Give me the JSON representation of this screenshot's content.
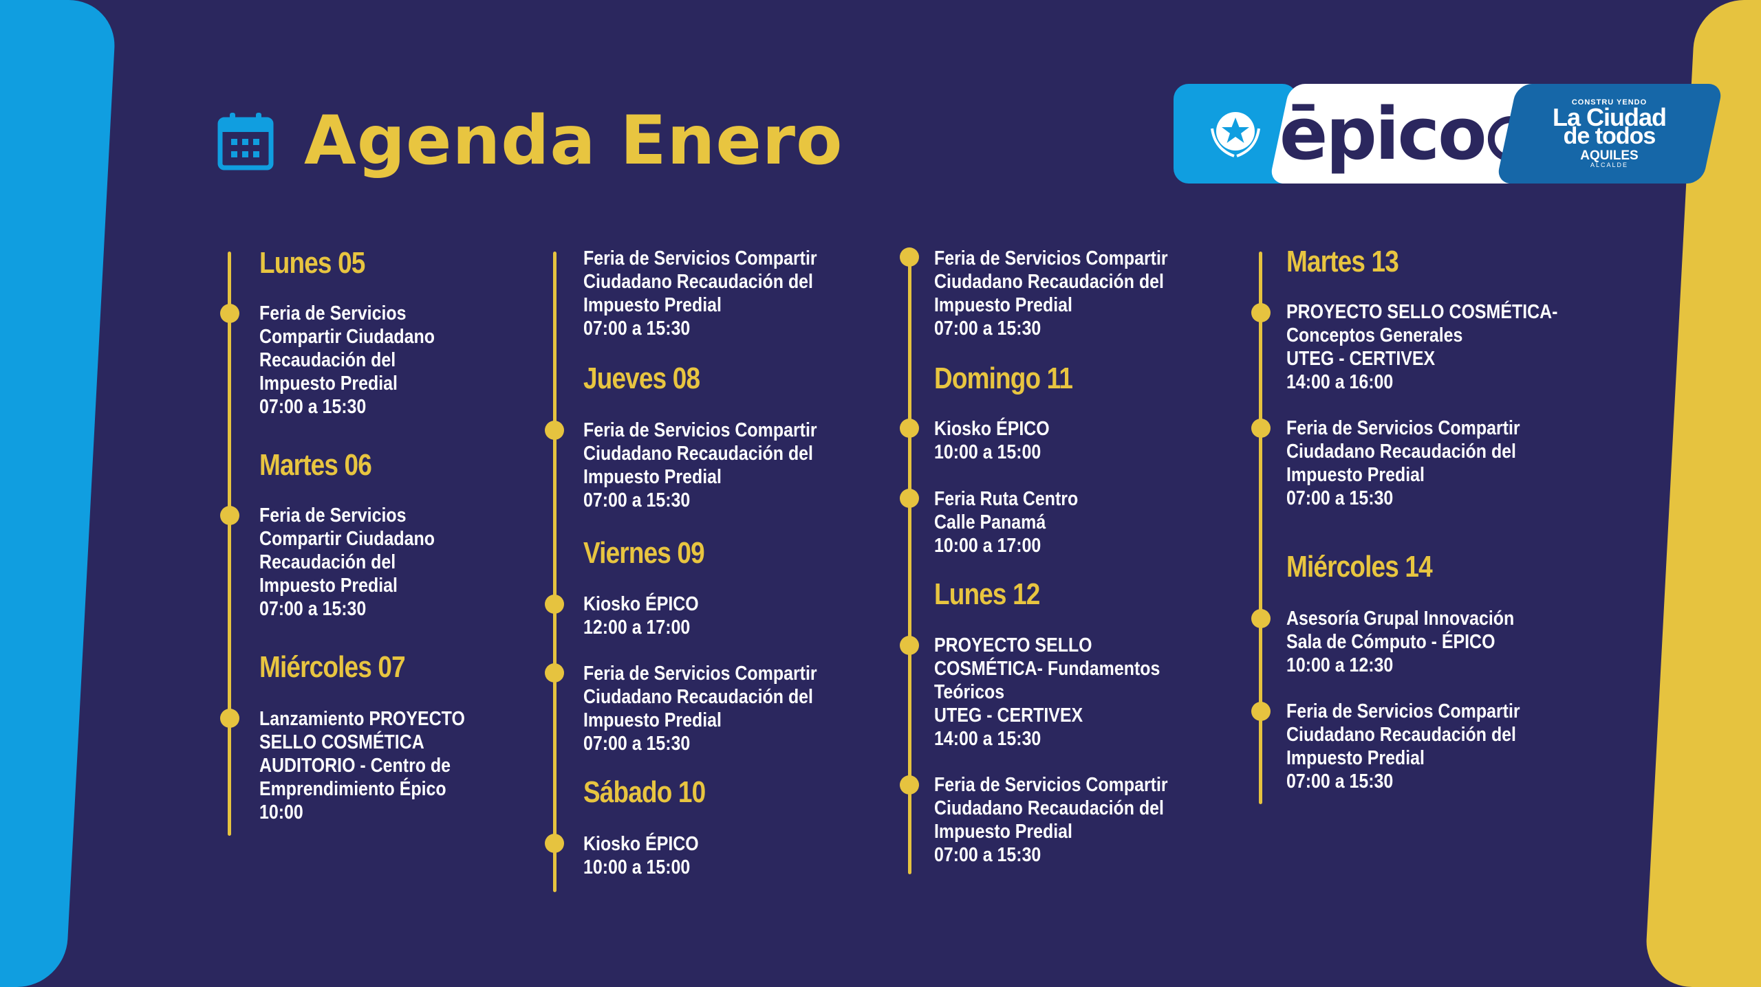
{
  "header": {
    "title": "Agenda Enero",
    "calendar_icon": "calendar-icon"
  },
  "logos": {
    "epico": "ēpico",
    "city_top": "CONSTRU YENDO",
    "city_line1": "La Ciudad",
    "city_line2": "de todos",
    "city_name": "AQUILES",
    "city_role": "ALCALDE"
  },
  "colors": {
    "background": "#2b275e",
    "accent_yellow": "#e6c33f",
    "accent_blue": "#109ee0",
    "text": "#ffffff"
  },
  "columns": [
    {
      "items": [
        {
          "type": "day",
          "label": "Lunes 05"
        },
        {
          "type": "event",
          "lines": [
            "Feria de Servicios",
            "Compartir Ciudadano",
            "Recaudación del",
            "Impuesto Predial",
            "07:00 a 15:30"
          ]
        },
        {
          "type": "day",
          "label": "Martes 06"
        },
        {
          "type": "event",
          "lines": [
            "Feria de Servicios",
            "Compartir Ciudadano",
            "Recaudación del",
            "Impuesto Predial",
            "07:00 a 15:30"
          ]
        },
        {
          "type": "day",
          "label": "Miércoles 07"
        },
        {
          "type": "event",
          "lines": [
            "Lanzamiento PROYECTO",
            "SELLO COSMÉTICA",
            "AUDITORIO - Centro de",
            "Emprendimiento Épico",
            "10:00"
          ]
        }
      ]
    },
    {
      "items": [
        {
          "type": "event",
          "lines": [
            "Feria de Servicios Compartir",
            "Ciudadano Recaudación del",
            "Impuesto Predial",
            "07:00 a 15:30"
          ]
        },
        {
          "type": "day",
          "label": "Jueves 08"
        },
        {
          "type": "event",
          "lines": [
            "Feria de Servicios Compartir",
            "Ciudadano Recaudación del",
            "Impuesto Predial",
            "07:00 a 15:30"
          ]
        },
        {
          "type": "day",
          "label": "Viernes 09"
        },
        {
          "type": "event",
          "lines": [
            "Kiosko ÉPICO",
            "12:00 a 17:00"
          ]
        },
        {
          "type": "event",
          "lines": [
            "Feria de Servicios Compartir",
            "Ciudadano Recaudación del",
            "Impuesto Predial",
            "07:00 a 15:30"
          ]
        },
        {
          "type": "day",
          "label": "Sábado 10"
        },
        {
          "type": "event",
          "lines": [
            "Kiosko ÉPICO",
            "10:00 a 15:00"
          ]
        }
      ]
    },
    {
      "items": [
        {
          "type": "event",
          "lines": [
            "Feria de Servicios Compartir",
            "Ciudadano Recaudación del",
            "Impuesto Predial",
            "07:00 a 15:30"
          ]
        },
        {
          "type": "day",
          "label": "Domingo 11"
        },
        {
          "type": "event",
          "lines": [
            "Kiosko ÉPICO",
            "10:00 a 15:00"
          ]
        },
        {
          "type": "event",
          "lines": [
            "Feria Ruta Centro",
            "Calle Panamá",
            "10:00 a 17:00"
          ]
        },
        {
          "type": "day",
          "label": "Lunes 12"
        },
        {
          "type": "event",
          "lines": [
            "PROYECTO SELLO",
            "COSMÉTICA- Fundamentos",
            "Teóricos",
            "UTEG - CERTIVEX",
            "14:00 a 15:30"
          ]
        },
        {
          "type": "event",
          "lines": [
            "Feria de Servicios Compartir",
            "Ciudadano Recaudación del",
            "Impuesto Predial",
            "07:00 a 15:30"
          ]
        }
      ]
    },
    {
      "items": [
        {
          "type": "day",
          "label": "Martes 13"
        },
        {
          "type": "event",
          "lines": [
            "PROYECTO SELLO COSMÉTICA-",
            "Conceptos Generales",
            "UTEG - CERTIVEX",
            "14:00 a 16:00"
          ]
        },
        {
          "type": "event",
          "lines": [
            "Feria de Servicios Compartir",
            "Ciudadano Recaudación del",
            "Impuesto Predial",
            "07:00 a 15:30"
          ]
        },
        {
          "type": "day",
          "label": "Miércoles 14"
        },
        {
          "type": "event",
          "lines": [
            "Asesoría Grupal Innovación",
            "Sala de Cómputo - ÉPICO",
            "10:00 a 12:30"
          ]
        },
        {
          "type": "event",
          "lines": [
            "Feria de Servicios Compartir",
            "Ciudadano Recaudación del",
            "Impuesto Predial",
            "07:00 a 15:30"
          ]
        }
      ]
    }
  ]
}
